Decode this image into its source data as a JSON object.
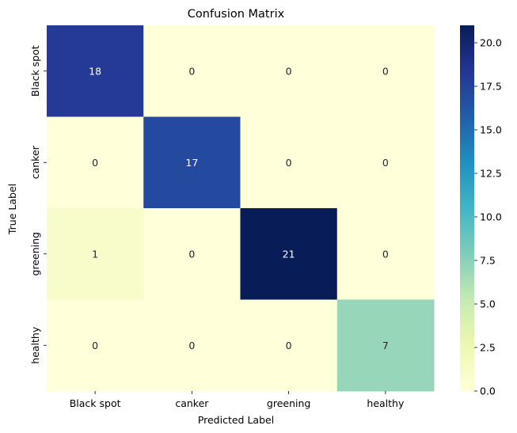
{
  "chart_data": {
    "type": "heatmap",
    "title": "Confusion Matrix",
    "xlabel": "Predicted Label",
    "ylabel": "True Label",
    "x_categories": [
      "Black spot",
      "canker",
      "greening",
      "healthy"
    ],
    "y_categories": [
      "Black spot",
      "canker",
      "greening",
      "healthy"
    ],
    "values": [
      [
        18,
        0,
        0,
        0
      ],
      [
        0,
        17,
        0,
        0
      ],
      [
        1,
        0,
        21,
        0
      ],
      [
        0,
        0,
        0,
        7
      ]
    ],
    "colormap": "YlGnBu",
    "colorbar": {
      "range": [
        0,
        21
      ],
      "ticks": [
        "0.0",
        "2.5",
        "5.0",
        "7.5",
        "10.0",
        "12.5",
        "15.0",
        "17.5",
        "20.0"
      ]
    },
    "grid": false
  }
}
